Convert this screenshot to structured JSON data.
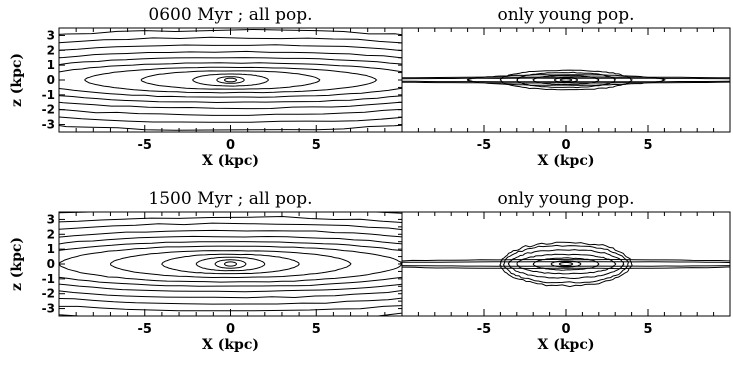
{
  "chart_data": [
    {
      "type": "contour",
      "title": "0600 Myr ; all pop.",
      "xlabel": "X (kpc)",
      "ylabel": "z (kpc)",
      "xlim": [
        -10,
        10
      ],
      "ylim": [
        -3.5,
        3.5
      ],
      "xticks": [
        "-5",
        "0",
        "5"
      ],
      "yticks": [
        "-3",
        "-2",
        "-1",
        "0",
        "1",
        "2",
        "3"
      ],
      "population": "all",
      "contours": [
        {
          "a": 0.35,
          "b": 0.12
        },
        {
          "a": 0.8,
          "b": 0.22
        },
        {
          "a": 2.2,
          "b": 0.4
        },
        {
          "a": 5.2,
          "b": 0.62
        },
        {
          "a": 8.5,
          "b": 0.85
        },
        {
          "a": 11.5,
          "b": 1.15
        },
        {
          "a": 14,
          "b": 1.5
        },
        {
          "a": 16,
          "b": 1.9
        },
        {
          "a": 18,
          "b": 2.35
        },
        {
          "a": 20,
          "b": 2.85
        },
        {
          "a": 22,
          "b": 3.35
        }
      ]
    },
    {
      "type": "contour",
      "title": "only young pop.",
      "xlabel": "X (kpc)",
      "xlim": [
        -10,
        10
      ],
      "ylim": [
        -3.5,
        3.5
      ],
      "xticks": [
        "-5",
        "0",
        "5"
      ],
      "population": "young",
      "contours": [
        {
          "a": 0.35,
          "b": 0.08
        },
        {
          "a": 0.7,
          "b": 0.15
        },
        {
          "a": 2.0,
          "b": 0.3
        },
        {
          "a": 3.0,
          "b": 0.5
        },
        {
          "a": 4.0,
          "b": 0.65
        },
        {
          "a": 6.0,
          "b": 0.35
        },
        {
          "a": 14,
          "b": 0.2
        },
        {
          "a": 14,
          "b": 0.12
        }
      ]
    },
    {
      "type": "contour",
      "title": "1500 Myr ; all pop.",
      "xlabel": "X (kpc)",
      "ylabel": "z (kpc)",
      "xlim": [
        -10,
        10
      ],
      "ylim": [
        -3.5,
        3.5
      ],
      "xticks": [
        "-5",
        "0",
        "5"
      ],
      "yticks": [
        "-3",
        "-2",
        "-1",
        "0",
        "1",
        "2",
        "3"
      ],
      "population": "all",
      "contours": [
        {
          "a": 0.35,
          "b": 0.14
        },
        {
          "a": 0.9,
          "b": 0.28
        },
        {
          "a": 2.0,
          "b": 0.45
        },
        {
          "a": 4.0,
          "b": 0.65
        },
        {
          "a": 7.0,
          "b": 0.9
        },
        {
          "a": 10,
          "b": 1.2
        },
        {
          "a": 12.5,
          "b": 1.5
        },
        {
          "a": 14.5,
          "b": 1.85
        },
        {
          "a": 16.5,
          "b": 2.25
        },
        {
          "a": 18.5,
          "b": 2.7
        },
        {
          "a": 20.5,
          "b": 3.15
        },
        {
          "a": 23,
          "b": 3.7
        }
      ]
    },
    {
      "type": "contour",
      "title": "only young pop.",
      "xlabel": "X (kpc)",
      "xlim": [
        -10,
        10
      ],
      "ylim": [
        -3.5,
        3.5
      ],
      "xticks": [
        "-5",
        "0",
        "5"
      ],
      "population": "young",
      "contours": [
        {
          "a": 0.4,
          "b": 0.1
        },
        {
          "a": 0.9,
          "b": 0.2
        },
        {
          "a": 2.0,
          "b": 0.4
        },
        {
          "a": 3.0,
          "b": 0.65
        },
        {
          "a": 3.5,
          "b": 0.95
        },
        {
          "a": 3.8,
          "b": 1.25
        },
        {
          "a": 4.0,
          "b": 1.45
        },
        {
          "a": 14,
          "b": 0.3
        },
        {
          "a": 14,
          "b": 0.15
        }
      ]
    }
  ]
}
